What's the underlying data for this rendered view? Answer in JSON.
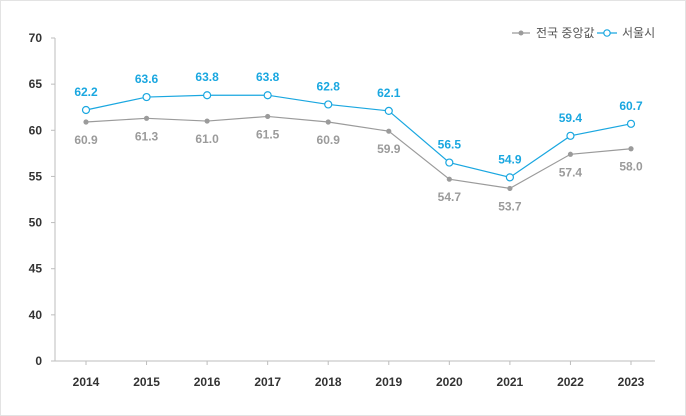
{
  "chart_data": {
    "type": "line",
    "title": "",
    "xlabel": "",
    "ylabel": "",
    "grid": false,
    "categories": [
      "2014",
      "2015",
      "2016",
      "2017",
      "2018",
      "2019",
      "2020",
      "2021",
      "2022",
      "2023"
    ],
    "yticks": [
      0,
      40,
      45,
      50,
      55,
      60,
      65,
      70
    ],
    "ylim": [
      0,
      70
    ],
    "axis_break": [
      0,
      40
    ],
    "legend_position": "top-right",
    "series": [
      {
        "name": "전국 중앙값",
        "color": "#9b9b9b",
        "marker": "filled-circle",
        "label_position": "below",
        "values": [
          60.9,
          61.3,
          61.0,
          61.5,
          60.9,
          59.9,
          54.7,
          53.7,
          57.4,
          58.0
        ]
      },
      {
        "name": "서울시",
        "color": "#1aa7e0",
        "marker": "hollow-circle",
        "label_position": "above",
        "values": [
          62.2,
          63.6,
          63.8,
          63.8,
          62.8,
          62.1,
          56.5,
          54.9,
          59.4,
          60.7
        ]
      }
    ]
  }
}
